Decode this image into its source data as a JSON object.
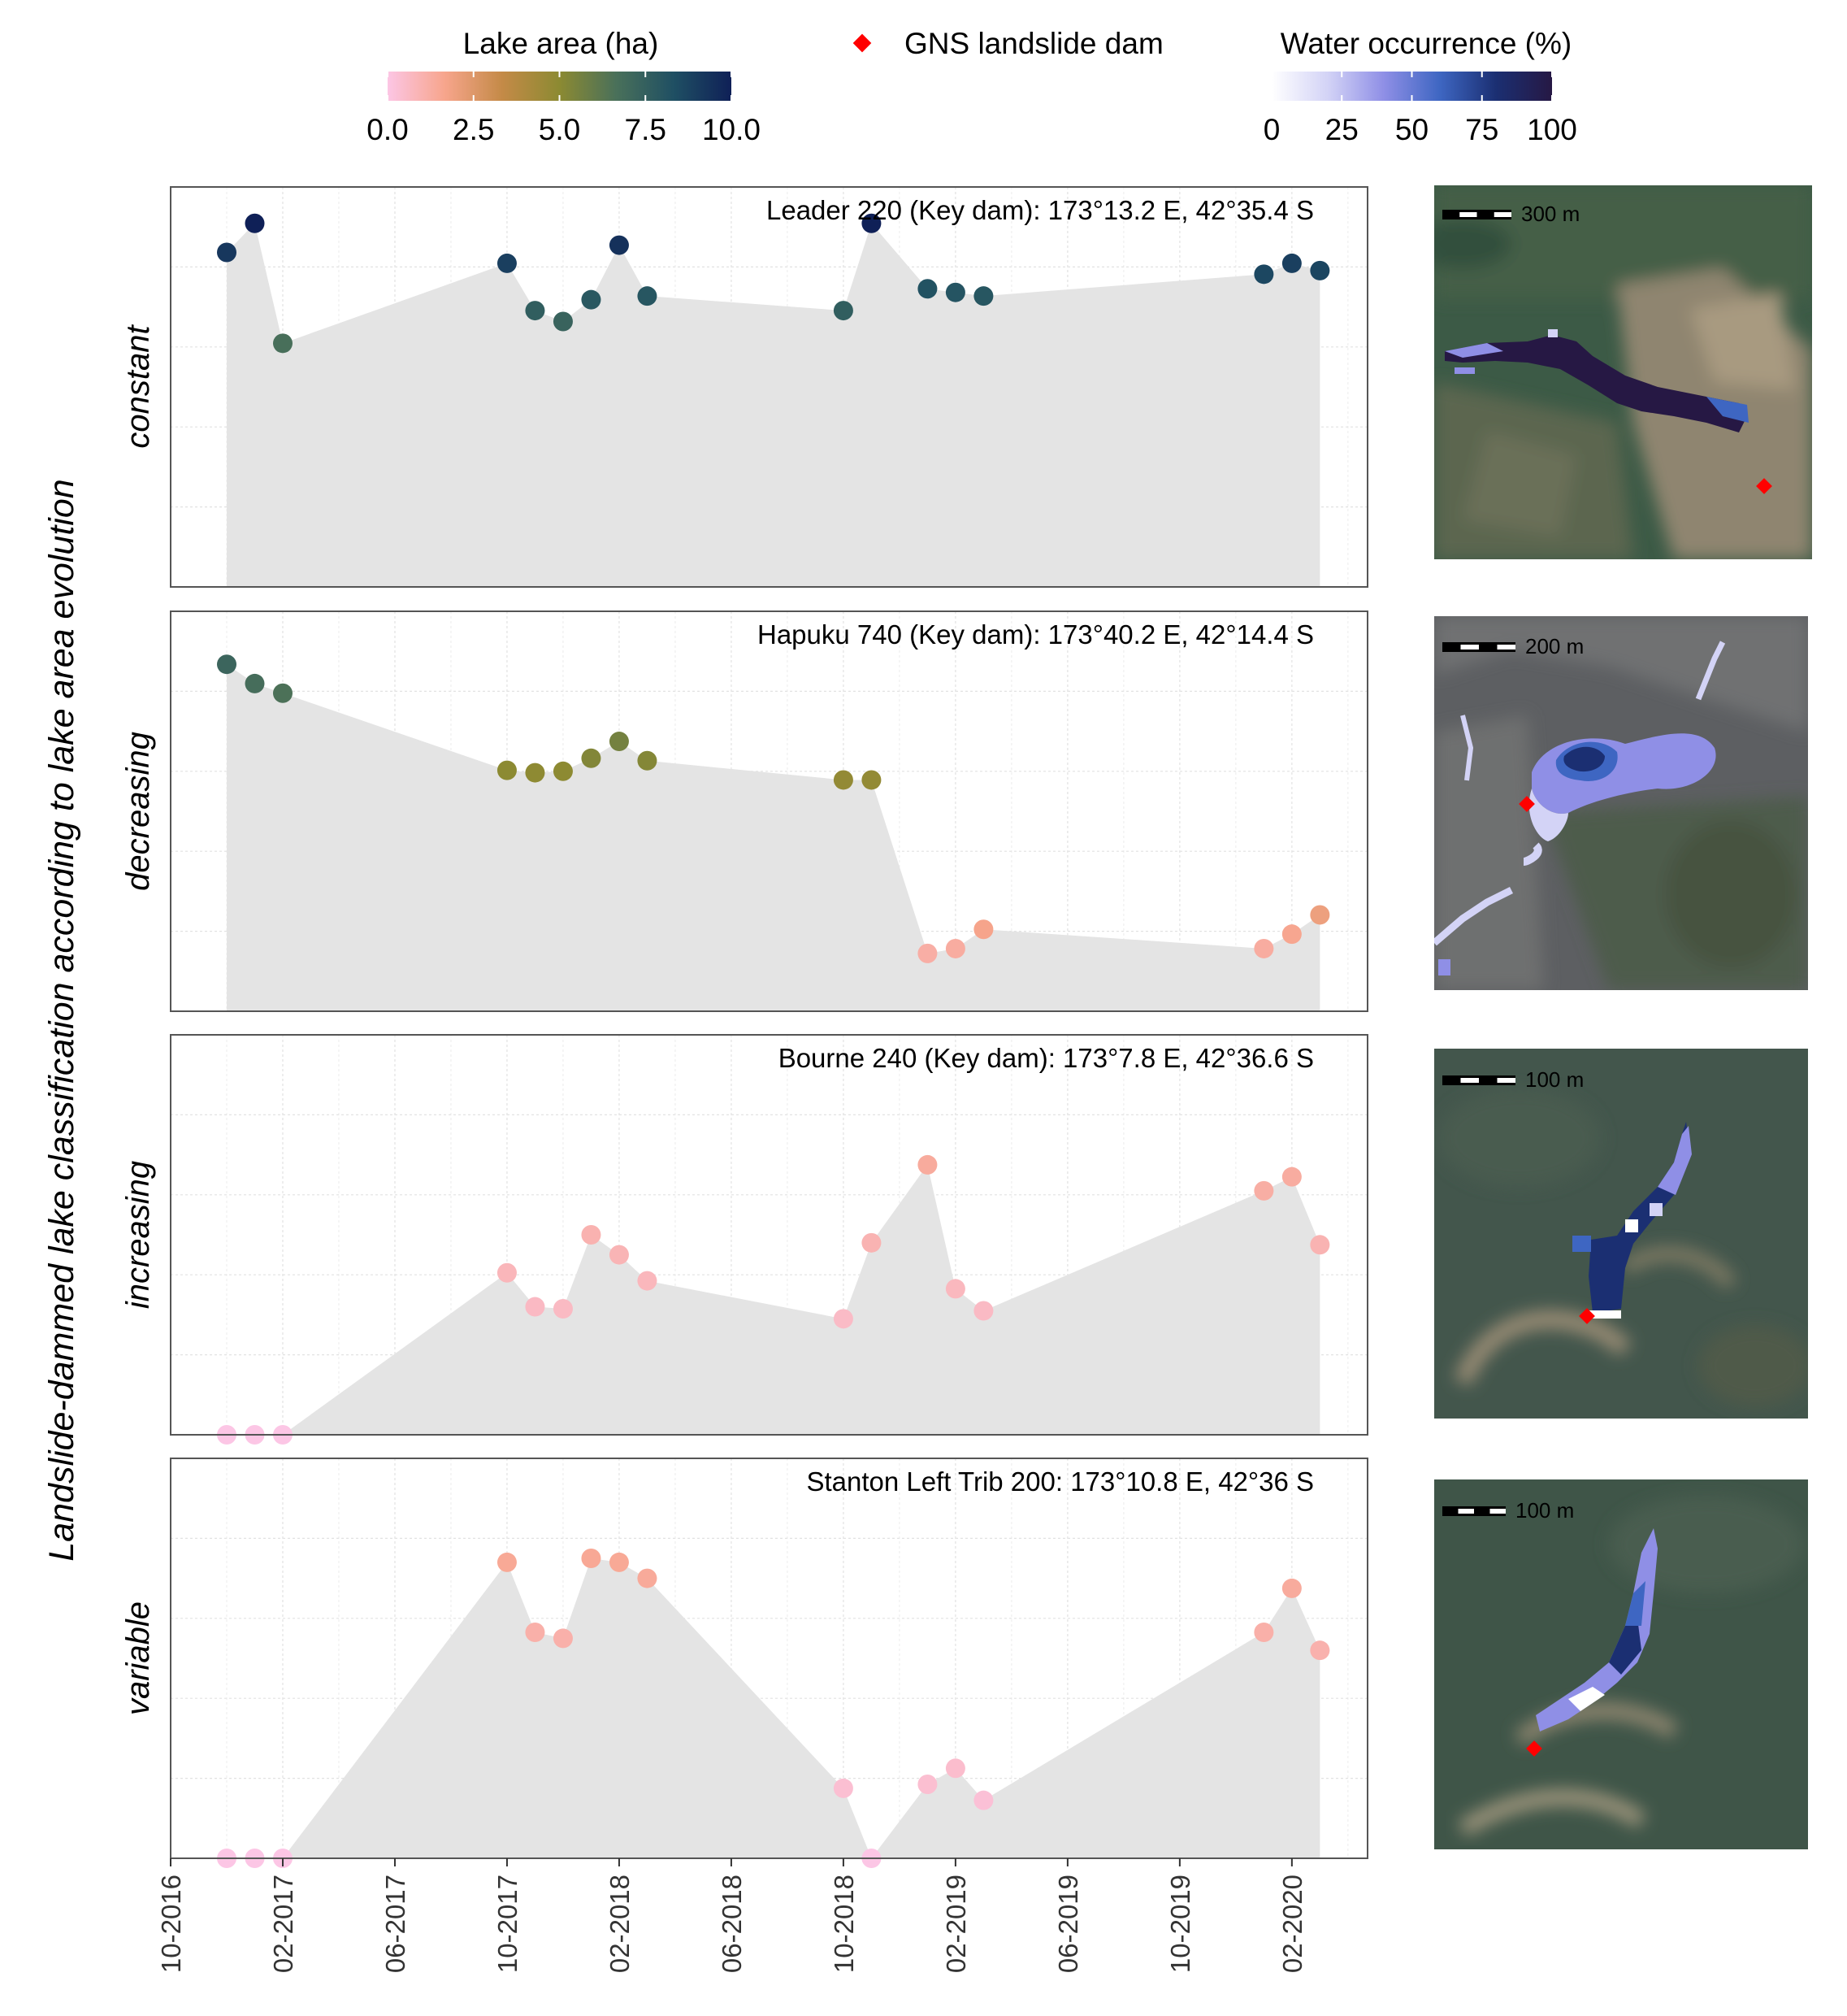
{
  "legend": {
    "lake_area": {
      "title": "Lake area (ha)",
      "ticks": [
        "0.0",
        "2.5",
        "5.0",
        "7.5",
        "10.0"
      ],
      "range": [
        0,
        10
      ],
      "colors": [
        "#fcc6e5",
        "#f7a58c",
        "#c48a47",
        "#8c8a32",
        "#49705a",
        "#1f4f63",
        "#0f2057"
      ]
    },
    "dam": {
      "label": "GNS landslide dam",
      "color": "#ff0000"
    },
    "water_occurrence": {
      "title": "Water occurrence (%)",
      "ticks": [
        "0",
        "25",
        "50",
        "75",
        "100"
      ],
      "range": [
        0,
        100
      ],
      "colors": [
        "#ffffff",
        "#d3d3f6",
        "#8f8fe6",
        "#3e66c2",
        "#1b2f72",
        "#261844"
      ]
    }
  },
  "y_axis_title": "Landslide-dammed lake classification according to lake area evolution",
  "area_fill_color": "#e4e4e4",
  "x_axis": {
    "ticks": [
      "10-2016",
      "02-2017",
      "06-2017",
      "10-2017",
      "02-2018",
      "06-2018",
      "10-2018",
      "02-2019",
      "06-2019",
      "10-2019",
      "02-2020"
    ],
    "tick_months": [
      0,
      4,
      8,
      12,
      16,
      20,
      24,
      28,
      32,
      36,
      40
    ],
    "range_months": [
      0,
      42.7
    ]
  },
  "scale_bars": [
    "300 m",
    "200 m",
    "100 m",
    "100 m"
  ],
  "chart_data": [
    {
      "type": "area",
      "class_label": "constant",
      "title": "Leader 220 (Key dam): 173°13.2 E, 42°35.4 S",
      "x_months": [
        2,
        3,
        4,
        12,
        13,
        14,
        15,
        16,
        17,
        24,
        25,
        27,
        28,
        29,
        39,
        40,
        41
      ],
      "area_ha": [
        9.2,
        10.0,
        6.7,
        8.9,
        7.6,
        7.3,
        7.9,
        9.4,
        8.0,
        7.6,
        10.0,
        8.2,
        8.1,
        8.0,
        8.6,
        8.9,
        8.7
      ],
      "y_axis_top": 11.0
    },
    {
      "type": "area",
      "class_label": "decreasing",
      "title": "Hapuku 740 (Key dam): 173°40.2 E, 42°14.4 S",
      "x_months": [
        2,
        3,
        4,
        12,
        13,
        14,
        15,
        16,
        17,
        24,
        25,
        27,
        28,
        29,
        39,
        40,
        41
      ],
      "area_ha": [
        7.2,
        6.8,
        6.6,
        5.0,
        4.95,
        4.98,
        5.25,
        5.6,
        5.2,
        4.8,
        4.8,
        1.2,
        1.3,
        1.7,
        1.3,
        1.6,
        2.0
      ],
      "y_axis_top": 8.3
    },
    {
      "type": "area",
      "class_label": "increasing",
      "title": "Bourne 240 (Key dam): 173°7.8 E, 42°36.6 S",
      "x_months": [
        2,
        3,
        4,
        12,
        13,
        14,
        15,
        16,
        17,
        24,
        25,
        27,
        28,
        29,
        39,
        40,
        41
      ],
      "area_ha": [
        0.0,
        0.0,
        0.0,
        0.81,
        0.64,
        0.63,
        1.0,
        0.9,
        0.77,
        0.58,
        0.96,
        1.35,
        0.73,
        0.62,
        1.22,
        1.29,
        0.95
      ],
      "y_axis_top": 2.0
    },
    {
      "type": "area",
      "class_label": "variable",
      "title": "Stanton Left Trib 200: 173°10.8 E, 42°36 S",
      "x_months": [
        2,
        3,
        4,
        12,
        13,
        14,
        15,
        16,
        17,
        24,
        25,
        27,
        28,
        29,
        39,
        40,
        41
      ],
      "area_ha": [
        0.0,
        0.0,
        0.0,
        1.48,
        1.13,
        1.1,
        1.5,
        1.48,
        1.4,
        0.35,
        0.0,
        0.37,
        0.45,
        0.29,
        1.13,
        1.35,
        1.04
      ],
      "y_axis_top": 2.0
    }
  ]
}
